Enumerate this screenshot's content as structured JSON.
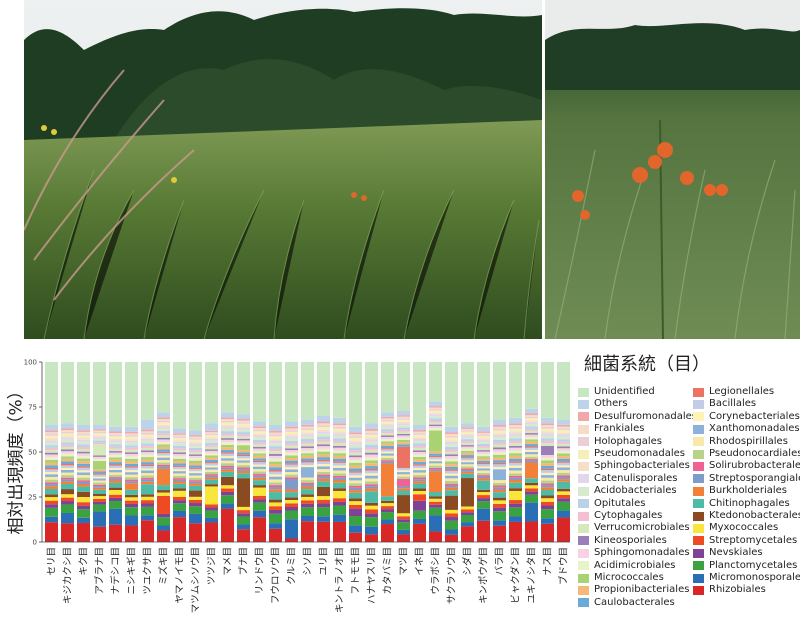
{
  "photos": [
    {
      "name": "meadow-photo",
      "description_icon": "grassland-photo"
    },
    {
      "name": "lily-photo",
      "description_icon": "tiger-lily-photo"
    }
  ],
  "colors": {
    "Unidentified": "#c9e6c3",
    "Others": "#bcd3ea",
    "Desulfuromonadales": "#f2a7ab",
    "Frankiales": "#f5dcc8",
    "Holophagales": "#eccfd6",
    "Pseudomonadales": "#f7efb9",
    "Sphingobacteriales": "#f7dfc6",
    "Catenulisporales": "#e3d6ea",
    "Acidobacteriales": "#d6ebcd",
    "Opitutales": "#b9d2ea",
    "Cytophagales": "#f3bfd1",
    "Verrucomicrobiales": "#d5e9ba",
    "Kineosporiales": "#9b7fb8",
    "Sphingomonadales": "#f6d2e2",
    "Acidimicrobiales": "#eaf2c9",
    "Micrococcales": "#a9d272",
    "Propionibacteriales": "#f6b877",
    "Caulobacterales": "#6aaad6",
    "Legionellales": "#ec7264",
    "Bacillales": "#c4cbe6",
    "Corynebacteriales": "#fdf3b4",
    "Xanthomonadales": "#8db2d9",
    "Rhodospirillales": "#f8e9a9",
    "Pseudonocardiales": "#b9d28a",
    "Solirubrobacterales": "#ef6394",
    "Streptosporangiales": "#7f9bc9",
    "Burkholderiales": "#f38038",
    "Chitinophagales": "#4dbba5",
    "Ktedonobacterales": "#8a4a22",
    "Myxococcales": "#fae53a",
    "Streptomycetales": "#ee4a24",
    "Nevskiales": "#7e4396",
    "Planctomycetales": "#3aa241",
    "Micromonosporales": "#2a6eb6",
    "Rhizobiales": "#d92727"
  },
  "legend": {
    "title": "細菌系統（目）",
    "col1": [
      "Unidentified",
      "Others",
      "Desulfuromonadales",
      "Frankiales",
      "Holophagales",
      "Pseudomonadales",
      "Sphingobacteriales",
      "Catenulisporales",
      "Acidobacteriales",
      "Opitutales",
      "Cytophagales",
      "Verrucomicrobiales",
      "Kineosporiales",
      "Sphingomonadales",
      "Acidimicrobiales",
      "Micrococcales",
      "Propionibacteriales",
      "Caulobacterales"
    ],
    "col2": [
      "Legionellales",
      "Bacillales",
      "Corynebacteriales",
      "Xanthomonadales",
      "Rhodospirillales",
      "Pseudonocardiales",
      "Solirubrobacterales",
      "Streptosporangiales",
      "Burkholderiales",
      "Chitinophagales",
      "Ktedonobacterales",
      "Myxococcales",
      "Streptomycetales",
      "Nevskiales",
      "Planctomycetales",
      "Micromonosporales",
      "Rhizobiales"
    ]
  },
  "chart_data": {
    "type": "bar",
    "stacked": true,
    "title": "",
    "xlabel": "",
    "ylabel": "相対出現頻度（%）",
    "ylim": [
      0,
      100
    ],
    "yticks": [
      "0",
      "25",
      "50",
      "75",
      "100"
    ],
    "grid": false,
    "legend_position": "right",
    "categories": [
      "セリ目",
      "キジカクシ目",
      "キク目",
      "アブラナ目",
      "ナデシコ目",
      "ニシキギ目",
      "ツユクサ目",
      "ミズキ目",
      "ヤマノイモ目",
      "マツムシソウ目",
      "ツツジ目",
      "マメ目",
      "ブナ目",
      "リンドウ目",
      "フウロソウ目",
      "クルミ目",
      "シソ目",
      "ユリ目",
      "キントラノオ目",
      "フトモモ目",
      "ハナヤスリ目",
      "カタバミ目",
      "マツ目",
      "イネ目",
      "ウラボシ目",
      "サクラソウ目",
      "シダ目",
      "キンポウゲ目",
      "バラ目",
      "ビャクダン目",
      "ユキノシタ目",
      "ナス目",
      "ブドウ目"
    ],
    "order": [
      "Rhizobiales",
      "Micromonosporales",
      "Planctomycetales",
      "Nevskiales",
      "Streptomycetales",
      "Myxococcales",
      "Ktedonobacterales",
      "Chitinophagales",
      "Burkholderiales",
      "Streptosporangiales",
      "Solirubrobacterales",
      "Pseudonocardiales",
      "Rhodospirillales",
      "Xanthomonadales",
      "Corynebacteriales",
      "Bacillales",
      "Legionellales",
      "Caulobacterales",
      "Propionibacteriales",
      "Micrococcales",
      "Acidimicrobiales",
      "Sphingomonadales",
      "Kineosporiales",
      "Verrucomicrobiales",
      "Cytophagales",
      "Opitutales",
      "Acidobacteriales",
      "Catenulisporales",
      "Sphingobacteriales",
      "Pseudomonadales",
      "Holophagales",
      "Frankiales",
      "Desulfuromonadales",
      "Others",
      "Unidentified"
    ],
    "base": {
      "Rhizobiales": 11,
      "Micromonosporales": 3,
      "Planctomycetales": 5,
      "Nevskiales": 2,
      "Streptomycetales": 2,
      "Myxococcales": 2,
      "Ktedonobacterales": 1.5,
      "Chitinophagales": 3,
      "Burkholderiales": 1.5,
      "Streptosporangiales": 1.2,
      "Solirubrobacterales": 1,
      "Pseudonocardiales": 1.5,
      "Rhodospirillales": 1.5,
      "Xanthomonadales": 1.5,
      "Corynebacteriales": 1.2,
      "Bacillales": 1.5,
      "Legionellales": 0.8,
      "Caulobacterales": 1.5,
      "Propionibacteriales": 1.5,
      "Micrococcales": 1.5,
      "Acidimicrobiales": 1.5,
      "Sphingomonadales": 1.5,
      "Kineosporiales": 1,
      "Verrucomicrobiales": 1.5,
      "Cytophagales": 1.2,
      "Opitutales": 1.5,
      "Acidobacteriales": 1.5,
      "Catenulisporales": 1.2,
      "Sphingobacteriales": 1,
      "Pseudomonadales": 1.5,
      "Holophagales": 1,
      "Frankiales": 1,
      "Desulfuromonadales": 1,
      "Others": 3
    },
    "overrides": [
      {},
      {
        "Micromonosporales": 6,
        "Ktedonobacterales": 3
      },
      {
        "Myxococcales": 3,
        "Ktedonobacterales": 3
      },
      {
        "Micromonosporales": 11,
        "Verrucomicrobiales": 8,
        "Micrococcales": 6
      },
      {
        "Micromonosporales": 10,
        "Myxococcales": 3
      },
      {
        "Rhizobiales": 10,
        "Micromonosporales": 6,
        "Burkholderiales": 4
      },
      {
        "Rhizobiales": 13,
        "Chitinophagales": 6,
        "Others": 6
      },
      {
        "Rhizobiales": 7,
        "Streptomycetales": 11,
        "Burkholderiales": 10
      },
      {
        "Rhizobiales": 16,
        "Micromonosporales": 4,
        "Myxococcales": 4
      },
      {
        "Rhizobiales": 12,
        "Micromonosporales": 6,
        "Ktedonobacterales": 4
      },
      {
        "Rhizobiales": 13,
        "Myxococcales": 12,
        "Others": 5
      },
      {
        "Rhizobiales": 20,
        "Micromonosporales": 3,
        "Ktedonobacterales": 5
      },
      {
        "Rhizobiales": 8,
        "Ktedonobacterales": 18,
        "Micrococcales": 3
      },
      {
        "Rhizobiales": 15,
        "Micromonosporales": 4,
        "Myxococcales": 5
      },
      {
        "Rhizobiales": 7,
        "Micromonosporales": 3,
        "Chitinophagales": 4
      },
      {
        "Rhizobiales": 2,
        "Micromonosporales": 11,
        "Streptosporangiales": 6
      },
      {
        "Rhizobiales": 12,
        "Micromonosporales": 3,
        "Xanthomonadales": 6
      },
      {
        "Rhizobiales": 11,
        "Micromonosporales": 3,
        "Ktedonobacterales": 5
      },
      {
        "Rhizobiales": 11,
        "Micromonosporales": 4,
        "Myxococcales": 4
      },
      {
        "Rhizobiales": 5,
        "Micromonosporales": 4,
        "Nevskiales": 4
      },
      {
        "Rhizobiales": 4,
        "Micromonosporales": 4,
        "Chitinophagales": 6
      },
      {
        "Rhizobiales": 12,
        "Burkholderiales": 22,
        "Micromonosporales": 3
      },
      {
        "Rhizobiales": 5,
        "Ktedonobacterales": 12,
        "Legionellales": 14,
        "Solirubrobacterales": 5
      },
      {
        "Rhizobiales": 11,
        "Nevskiales": 6,
        "Streptomycetales": 4
      },
      {
        "Rhizobiales": 7,
        "Micromonosporales": 11,
        "Burkholderiales": 14,
        "Micrococcales": 14
      },
      {
        "Rhizobiales": 4,
        "Micromonosporales": 3,
        "Ktedonobacterales": 8
      },
      {
        "Rhizobiales": 11,
        "Micromonosporales": 3,
        "Ktedonobacterales": 20
      },
      {
        "Rhizobiales": 14,
        "Micromonosporales": 8,
        "Chitinophagales": 6
      },
      {
        "Rhizobiales": 9,
        "Micromonosporales": 3,
        "Xanthomonadales": 6
      },
      {
        "Rhizobiales": 11,
        "Micromonosporales": 3,
        "Myxococcales": 5
      },
      {
        "Rhizobiales": 13,
        "Micromonosporales": 12,
        "Burkholderiales": 10
      },
      {
        "Rhizobiales": 10,
        "Micromonosporales": 3,
        "Kineosporiales": 5
      },
      {
        "Rhizobiales": 14,
        "Micromonosporales": 4,
        "Chitinophagales": 4
      }
    ],
    "unidentified": [
      35,
      34,
      35,
      35,
      36,
      36,
      32,
      28,
      37,
      38,
      34,
      28,
      29,
      33,
      35,
      33,
      32,
      30,
      31,
      36,
      34,
      28,
      27,
      35,
      22,
      36,
      34,
      36,
      32,
      31,
      26,
      31,
      32
    ]
  }
}
